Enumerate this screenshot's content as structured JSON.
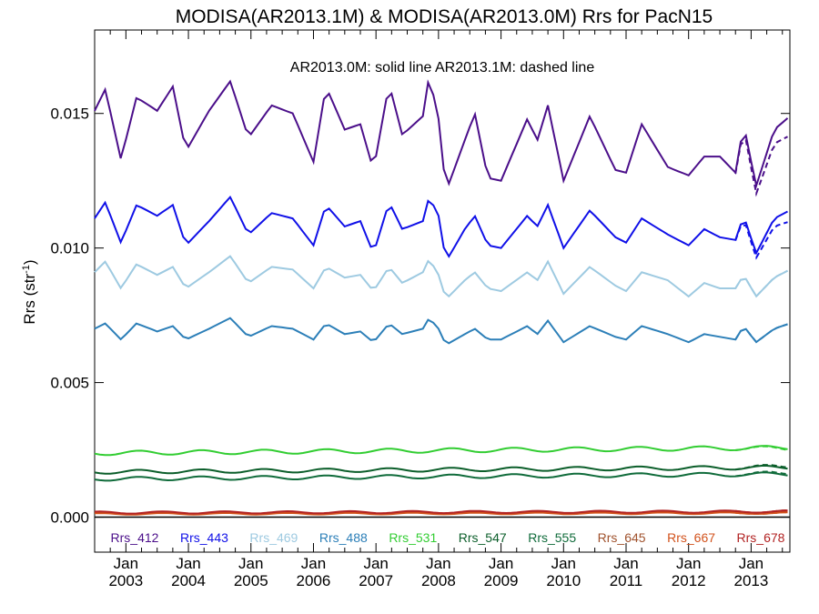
{
  "chart_data": {
    "type": "line",
    "title": "MODISA(AR2013.1M) & MODISA(AR2013.0M)  Rrs for PacN15",
    "ylabel": "Rrs (str",
    "ylabel_sup": "-1",
    "ylabel_close": ")",
    "annotation": "AR2013.0M: solid line   AR2013.1M: dashed line",
    "xlim": [
      2002.5,
      2013.62
    ],
    "ylim": [
      -0.0013,
      0.0181
    ],
    "yticks": [
      0.0,
      0.005,
      0.01,
      0.015
    ],
    "ytick_labels": [
      "0.000",
      "0.005",
      "0.010",
      "0.015"
    ],
    "xticks": [
      {
        "pos": 2003.0,
        "top": "Jan",
        "bottom": "2003"
      },
      {
        "pos": 2004.0,
        "top": "Jan",
        "bottom": "2004"
      },
      {
        "pos": 2005.0,
        "top": "Jan",
        "bottom": "2005"
      },
      {
        "pos": 2006.0,
        "top": "Jan",
        "bottom": "2006"
      },
      {
        "pos": 2007.0,
        "top": "Jan",
        "bottom": "2007"
      },
      {
        "pos": 2008.0,
        "top": "Jan",
        "bottom": "2008"
      },
      {
        "pos": 2009.0,
        "top": "Jan",
        "bottom": "2009"
      },
      {
        "pos": 2010.0,
        "top": "Jan",
        "bottom": "2010"
      },
      {
        "pos": 2011.0,
        "top": "Jan",
        "bottom": "2011"
      },
      {
        "pos": 2012.0,
        "top": "Jan",
        "bottom": "2012"
      },
      {
        "pos": 2013.0,
        "top": "Jan",
        "bottom": "2013"
      }
    ],
    "zero_line": true,
    "legend_position": "bottom inside plot",
    "series": [
      {
        "name": "Rrs_412",
        "color": "#4b0f8a",
        "base": 0.0144,
        "amp": 0.00115,
        "peak_month": 2.5,
        "dashed_diff": -0.0007,
        "anchors": [
          [
            2002.5,
            0.0151
          ],
          [
            2002.67,
            0.0159
          ],
          [
            2002.92,
            0.0133
          ],
          [
            2003.17,
            0.0156
          ],
          [
            2003.5,
            0.0151
          ],
          [
            2003.75,
            0.016
          ],
          [
            2003.96,
            0.0136
          ],
          [
            2004.33,
            0.0151
          ],
          [
            2004.67,
            0.0162
          ],
          [
            2004.96,
            0.0141
          ],
          [
            2005.33,
            0.0153
          ],
          [
            2005.67,
            0.015
          ],
          [
            2006.0,
            0.0132
          ],
          [
            2006.2,
            0.016
          ],
          [
            2006.5,
            0.0144
          ],
          [
            2006.75,
            0.0146
          ],
          [
            2006.96,
            0.0129
          ],
          [
            2007.21,
            0.0161
          ],
          [
            2007.42,
            0.0142
          ],
          [
            2007.75,
            0.0149
          ],
          [
            2007.85,
            0.0164
          ],
          [
            2008.0,
            0.0148
          ],
          [
            2008.12,
            0.0121
          ],
          [
            2008.42,
            0.014
          ],
          [
            2008.58,
            0.015
          ],
          [
            2008.79,
            0.0126
          ],
          [
            2009.0,
            0.0125
          ],
          [
            2009.42,
            0.0148
          ],
          [
            2009.58,
            0.014
          ],
          [
            2009.75,
            0.0153
          ],
          [
            2010.0,
            0.0125
          ],
          [
            2010.42,
            0.0149
          ],
          [
            2010.83,
            0.0129
          ],
          [
            2011.0,
            0.0128
          ],
          [
            2011.25,
            0.0146
          ],
          [
            2011.67,
            0.013
          ],
          [
            2012.0,
            0.0127
          ],
          [
            2012.25,
            0.0134
          ],
          [
            2012.5,
            0.0134
          ],
          [
            2012.75,
            0.0128
          ],
          [
            2012.88,
            0.0146
          ],
          [
            2013.08,
            0.0123
          ],
          [
            2013.37,
            0.0144
          ],
          [
            2013.62,
            0.0149
          ]
        ]
      },
      {
        "name": "Rrs_443",
        "color": "#1010e8",
        "base": 0.0108,
        "amp": 0.0007,
        "peak_month": 2.5,
        "dashed_diff": -0.0004,
        "anchors": [
          [
            2002.5,
            0.0111
          ],
          [
            2002.67,
            0.0117
          ],
          [
            2002.92,
            0.0102
          ],
          [
            2003.17,
            0.0116
          ],
          [
            2003.5,
            0.0112
          ],
          [
            2003.75,
            0.0116
          ],
          [
            2003.96,
            0.0101
          ],
          [
            2004.33,
            0.011
          ],
          [
            2004.67,
            0.0119
          ],
          [
            2004.96,
            0.0105
          ],
          [
            2005.33,
            0.0113
          ],
          [
            2005.67,
            0.0111
          ],
          [
            2006.0,
            0.0101
          ],
          [
            2006.2,
            0.0116
          ],
          [
            2006.5,
            0.0108
          ],
          [
            2006.75,
            0.011
          ],
          [
            2006.96,
            0.0098
          ],
          [
            2007.21,
            0.0117
          ],
          [
            2007.42,
            0.0107
          ],
          [
            2007.75,
            0.011
          ],
          [
            2007.85,
            0.0119
          ],
          [
            2008.0,
            0.0112
          ],
          [
            2008.12,
            0.0095
          ],
          [
            2008.42,
            0.0107
          ],
          [
            2008.58,
            0.0112
          ],
          [
            2008.79,
            0.0101
          ],
          [
            2009.0,
            0.01
          ],
          [
            2009.42,
            0.0112
          ],
          [
            2009.58,
            0.0108
          ],
          [
            2009.75,
            0.0116
          ],
          [
            2010.0,
            0.01
          ],
          [
            2010.42,
            0.0114
          ],
          [
            2010.83,
            0.0104
          ],
          [
            2011.0,
            0.0102
          ],
          [
            2011.25,
            0.0111
          ],
          [
            2011.67,
            0.0105
          ],
          [
            2012.0,
            0.0101
          ],
          [
            2012.25,
            0.0107
          ],
          [
            2012.5,
            0.0104
          ],
          [
            2012.75,
            0.0103
          ],
          [
            2012.88,
            0.0112
          ],
          [
            2013.08,
            0.0098
          ],
          [
            2013.37,
            0.0111
          ],
          [
            2013.62,
            0.0114
          ]
        ]
      },
      {
        "name": "Rrs_469",
        "color": "#9ecae1",
        "base": 0.0089,
        "amp": 0.00045,
        "peak_month": 2.5,
        "dashed_diff": 0.0,
        "anchors": [
          [
            2002.5,
            0.0091
          ],
          [
            2002.67,
            0.0095
          ],
          [
            2002.92,
            0.0085
          ],
          [
            2003.17,
            0.0094
          ],
          [
            2003.5,
            0.009
          ],
          [
            2003.75,
            0.0093
          ],
          [
            2003.96,
            0.0085
          ],
          [
            2004.33,
            0.0091
          ],
          [
            2004.67,
            0.0097
          ],
          [
            2004.96,
            0.0087
          ],
          [
            2005.33,
            0.0093
          ],
          [
            2005.67,
            0.0092
          ],
          [
            2006.0,
            0.0085
          ],
          [
            2006.2,
            0.0093
          ],
          [
            2006.5,
            0.0089
          ],
          [
            2006.75,
            0.009
          ],
          [
            2006.96,
            0.0084
          ],
          [
            2007.21,
            0.0093
          ],
          [
            2007.42,
            0.0087
          ],
          [
            2007.75,
            0.0091
          ],
          [
            2007.85,
            0.0096
          ],
          [
            2008.0,
            0.009
          ],
          [
            2008.12,
            0.0081
          ],
          [
            2008.42,
            0.0088
          ],
          [
            2008.58,
            0.0091
          ],
          [
            2008.79,
            0.0085
          ],
          [
            2009.0,
            0.0084
          ],
          [
            2009.42,
            0.0091
          ],
          [
            2009.58,
            0.0088
          ],
          [
            2009.75,
            0.0095
          ],
          [
            2010.0,
            0.0083
          ],
          [
            2010.42,
            0.0093
          ],
          [
            2010.83,
            0.0086
          ],
          [
            2011.0,
            0.0084
          ],
          [
            2011.25,
            0.0091
          ],
          [
            2011.67,
            0.0088
          ],
          [
            2012.0,
            0.0082
          ],
          [
            2012.25,
            0.0087
          ],
          [
            2012.5,
            0.0085
          ],
          [
            2012.75,
            0.0085
          ],
          [
            2012.88,
            0.009
          ],
          [
            2013.08,
            0.0082
          ],
          [
            2013.37,
            0.0089
          ],
          [
            2013.62,
            0.0092
          ]
        ]
      },
      {
        "name": "Rrs_488",
        "color": "#2c7fb8",
        "base": 0.0069,
        "amp": 0.0003,
        "peak_month": 2.5,
        "dashed_diff": 0.0,
        "anchors": [
          [
            2002.5,
            0.007
          ],
          [
            2002.67,
            0.0072
          ],
          [
            2002.92,
            0.0066
          ],
          [
            2003.17,
            0.0072
          ],
          [
            2003.5,
            0.0069
          ],
          [
            2003.75,
            0.0071
          ],
          [
            2003.96,
            0.0066
          ],
          [
            2004.33,
            0.007
          ],
          [
            2004.67,
            0.0074
          ],
          [
            2004.96,
            0.0067
          ],
          [
            2005.33,
            0.0071
          ],
          [
            2005.67,
            0.007
          ],
          [
            2006.0,
            0.0066
          ],
          [
            2006.2,
            0.0072
          ],
          [
            2006.5,
            0.0068
          ],
          [
            2006.75,
            0.0069
          ],
          [
            2006.96,
            0.0065
          ],
          [
            2007.21,
            0.0072
          ],
          [
            2007.42,
            0.0068
          ],
          [
            2007.75,
            0.007
          ],
          [
            2007.85,
            0.0074
          ],
          [
            2008.0,
            0.007
          ],
          [
            2008.12,
            0.0064
          ],
          [
            2008.42,
            0.0068
          ],
          [
            2008.58,
            0.007
          ],
          [
            2008.79,
            0.0066
          ],
          [
            2009.0,
            0.0066
          ],
          [
            2009.42,
            0.0071
          ],
          [
            2009.58,
            0.0068
          ],
          [
            2009.75,
            0.0073
          ],
          [
            2010.0,
            0.0065
          ],
          [
            2010.42,
            0.0071
          ],
          [
            2010.83,
            0.0067
          ],
          [
            2011.0,
            0.0066
          ],
          [
            2011.25,
            0.0071
          ],
          [
            2011.67,
            0.0068
          ],
          [
            2012.0,
            0.0065
          ],
          [
            2012.25,
            0.0068
          ],
          [
            2012.5,
            0.0067
          ],
          [
            2012.75,
            0.0066
          ],
          [
            2012.88,
            0.0071
          ],
          [
            2013.08,
            0.0065
          ],
          [
            2013.37,
            0.007
          ],
          [
            2013.62,
            0.0072
          ]
        ]
      },
      {
        "name": "Rrs_531",
        "color": "#32cd32",
        "base": 0.00235,
        "amp": 8e-05,
        "peak_month": 2.5,
        "dashed_diff": -3e-05,
        "anchors": [
          [
            2002.5,
            0.00238
          ],
          [
            2013.62,
            0.00258
          ]
        ]
      },
      {
        "name": "Rrs_547",
        "color": "#0b5e2a",
        "base": 0.00165,
        "amp": 7e-05,
        "peak_month": 2.5,
        "dashed_diff": 5e-05,
        "anchors": [
          [
            2002.5,
            0.00168
          ],
          [
            2013.62,
            0.00185
          ]
        ]
      },
      {
        "name": "Rrs_555",
        "color": "#0f6b3a",
        "base": 0.0014,
        "amp": 7e-05,
        "peak_month": 2.5,
        "dashed_diff": 5e-05,
        "anchors": [
          [
            2002.5,
            0.00142
          ],
          [
            2013.62,
            0.0016
          ]
        ]
      },
      {
        "name": "Rrs_645",
        "color": "#a0522d",
        "base": 0.00014,
        "amp": 3e-05,
        "peak_month": 7.0,
        "dashed_diff": 0.0,
        "anchors": [
          [
            2002.5,
            0.00015
          ],
          [
            2013.62,
            0.00018
          ]
        ]
      },
      {
        "name": "Rrs_667",
        "color": "#d2521c",
        "base": 0.00011,
        "amp": 3e-05,
        "peak_month": 7.0,
        "dashed_diff": 0.0,
        "anchors": [
          [
            2002.5,
            0.00012
          ],
          [
            2013.62,
            0.00015
          ]
        ]
      },
      {
        "name": "Rrs_678",
        "color": "#b22222",
        "base": 0.00016,
        "amp": 4e-05,
        "peak_month": 7.0,
        "dashed_diff": 0.0,
        "anchors": [
          [
            2002.5,
            0.00017
          ],
          [
            2013.62,
            0.00021
          ]
        ]
      }
    ]
  }
}
